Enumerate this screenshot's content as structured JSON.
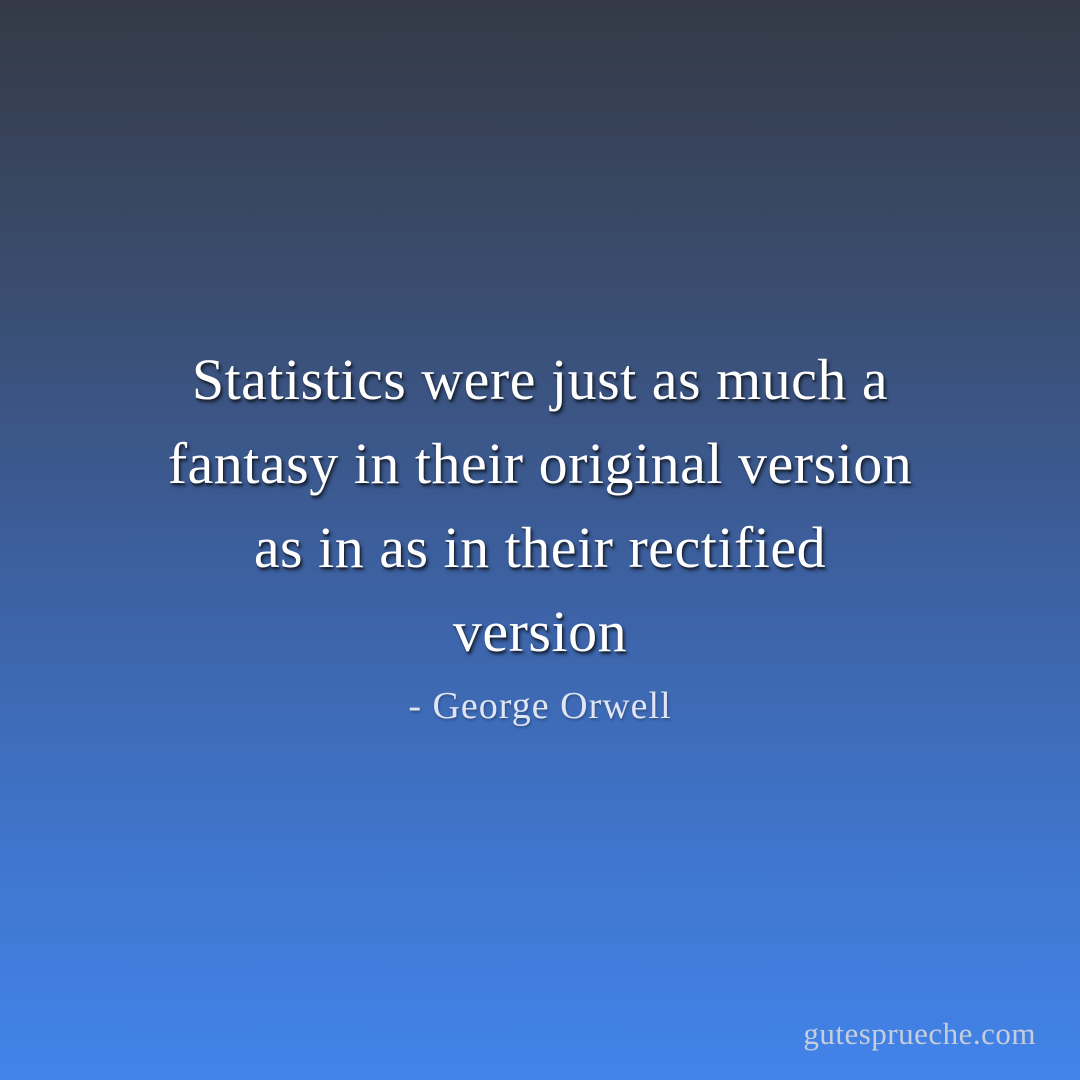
{
  "quote": {
    "lines": [
      "Statistics were just as much a",
      "fantasy in their original version",
      "as in as in their rectified",
      "version"
    ],
    "full_text": "Statistics were just as much a fantasy in their original version as in as in their rectified version",
    "attribution": "- George Orwell"
  },
  "watermark": {
    "text": "gutesprueche.com"
  },
  "colors": {
    "gradient_top": "#343a46",
    "gradient_mid": "#3c5f9e",
    "gradient_bottom": "#4284ea",
    "quote_text": "#ffffff",
    "attribution_text": "#dfe5f2",
    "watermark_text": "#c6cedd"
  }
}
